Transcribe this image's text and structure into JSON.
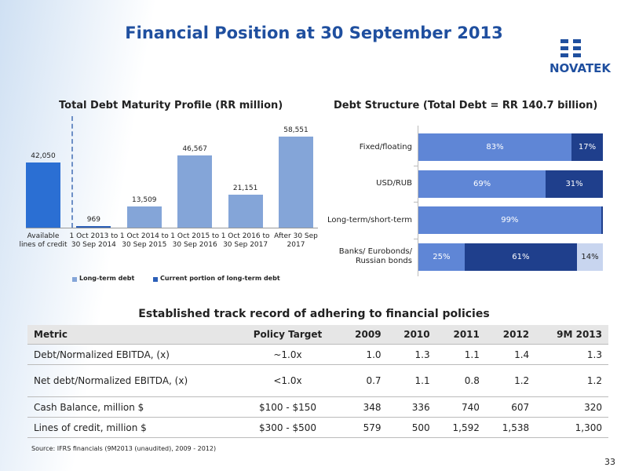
{
  "header": {
    "title": "Financial Position at 30 September 2013",
    "logo": "NOVATEK"
  },
  "chart_data": [
    {
      "type": "bar",
      "title": "Total Debt Maturity Profile (RR million)",
      "categories": [
        "Available lines of credit",
        "1 Oct 2013 to 30 Sep 2014",
        "1 Oct 2014 to 30 Sep 2015",
        "1 Oct 2015 to 30 Sep 2016",
        "1 Oct 2016 to 30 Sep 2017",
        "After 30 Sep 2017"
      ],
      "values": [
        42050,
        969,
        13509,
        46567,
        21151,
        58551
      ],
      "value_labels": [
        "42,050",
        "969",
        "13,509",
        "46,567",
        "21,151",
        "58,551"
      ],
      "colors": [
        "#2b6fd3",
        "#2b5fb8",
        "#84a5d8",
        "#84a5d8",
        "#84a5d8",
        "#84a5d8"
      ],
      "legend": [
        {
          "name": "Long-term debt",
          "color": "#84a5d8"
        },
        {
          "name": "Current portion of long-term debt",
          "color": "#2b5fb8"
        }
      ]
    },
    {
      "type": "stacked-bar-horizontal",
      "title": "Debt Structure (Total Debt = RR 140.7 billion)",
      "categories": [
        "Fixed/floating",
        "USD/RUB",
        "Long-term/short-term",
        "Banks/ Eurobonds/ Russian bonds"
      ],
      "series": [
        {
          "color": "#5f86d6",
          "values": [
            83,
            69,
            99,
            25
          ],
          "value_labels": [
            "83%",
            "69%",
            "99%",
            "25%"
          ]
        },
        {
          "color": "#1f3f8c",
          "values": [
            17,
            31,
            1,
            61
          ],
          "value_labels": [
            "17%",
            "31%",
            null,
            "61%"
          ]
        },
        {
          "color": "#c8d5ef",
          "values": [
            null,
            null,
            null,
            14
          ],
          "value_labels": [
            null,
            null,
            null,
            "14%"
          ]
        }
      ]
    }
  ],
  "table": {
    "title": "Established track record of adhering to financial policies",
    "columns": [
      "Metric",
      "Policy Target",
      "2009",
      "2010",
      "2011",
      "2012",
      "9M 2013"
    ],
    "rows": [
      [
        "Debt/Normalized EBITDA, (x)",
        "~1.0x",
        "1.0",
        "1.3",
        "1.1",
        "1.4",
        "1.3"
      ],
      [
        "Net debt/Normalized EBITDA, (x)",
        "<1.0x",
        "0.7",
        "1.1",
        "0.8",
        "1.2",
        "1.2"
      ],
      [
        "Cash Balance, million $",
        "$100 - $150",
        "348",
        "336",
        "740",
        "607",
        "320"
      ],
      [
        "Lines of credit, million $",
        "$300 - $500",
        "579",
        "500",
        "1,592",
        "1,538",
        "1,300"
      ]
    ]
  },
  "source": "Source: IFRS financials (9M2013 (unaudited), 2009 - 2012)",
  "page_number": "33"
}
